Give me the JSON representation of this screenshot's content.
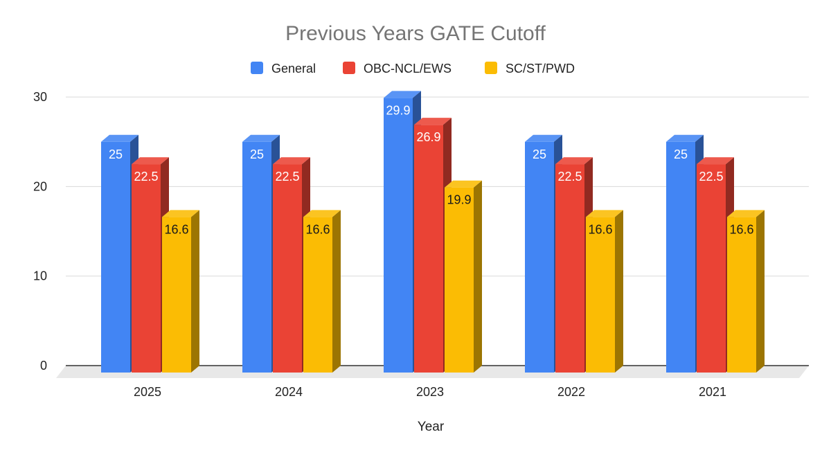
{
  "chart_data": {
    "type": "bar",
    "title": "Previous Years GATE Cutoff",
    "xlabel": "Year",
    "ylabel": "",
    "categories": [
      "2025",
      "2024",
      "2023",
      "2022",
      "2021"
    ],
    "series": [
      {
        "name": "General",
        "color": "#4285f4",
        "values": [
          25,
          25,
          29.9,
          25,
          25
        ]
      },
      {
        "name": "OBC-NCL/EWS",
        "color": "#ea4335",
        "values": [
          22.5,
          22.5,
          26.9,
          22.5,
          22.5
        ]
      },
      {
        "name": "SC/ST/PWD",
        "color": "#fbbc04",
        "values": [
          16.6,
          16.6,
          19.9,
          16.6,
          16.6
        ]
      }
    ],
    "data_labels": [
      [
        "25",
        "25",
        "29.9",
        "25",
        "25"
      ],
      [
        "22.5",
        "22.5",
        "26.9",
        "22.5",
        "22.5"
      ],
      [
        "16.6",
        "16.6",
        "19.9",
        "16.6",
        "16.6"
      ]
    ],
    "yticks": [
      "0",
      "10",
      "20",
      "30"
    ],
    "ylim": [
      0,
      30
    ],
    "grid": true,
    "legend_position": "top",
    "style": "3d-bars"
  }
}
